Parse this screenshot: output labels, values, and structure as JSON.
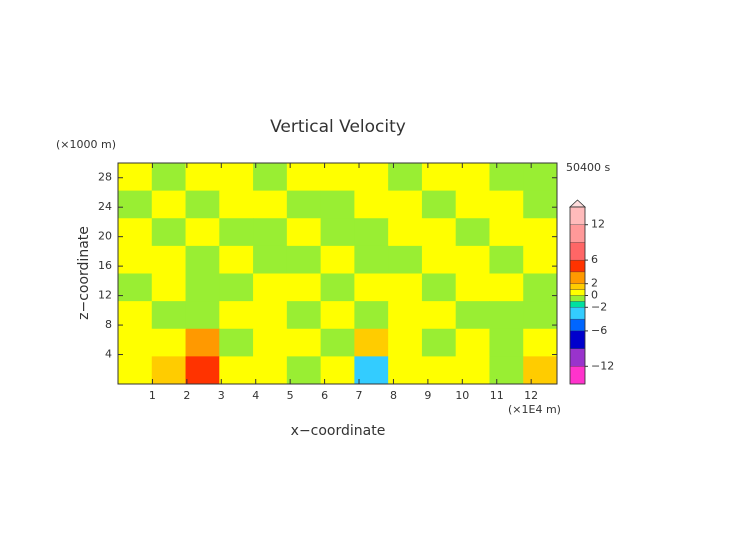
{
  "chart_data": {
    "type": "contour",
    "title": "Vertical Velocity",
    "time_label": "50400 s",
    "x_label": "x−coordinate",
    "y_label": "z−coordinate",
    "x_unit": "(×1E4 m)",
    "y_unit": "(×1000 m)",
    "xlim": [
      0,
      12.75
    ],
    "ylim": [
      0,
      30
    ],
    "xticks": [
      1,
      2,
      3,
      4,
      5,
      6,
      7,
      8,
      9,
      10,
      11,
      12
    ],
    "yticks": [
      4,
      8,
      12,
      16,
      20,
      24,
      28
    ],
    "field": [
      [
        0.5,
        -0.5,
        0.5,
        0.5,
        -0.5,
        0.5,
        0.5,
        0.5,
        -0.5,
        0.5,
        0.5,
        -0.5,
        -0.5
      ],
      [
        -0.5,
        0.5,
        -0.5,
        0.5,
        0.5,
        -0.5,
        -0.5,
        0.5,
        0.5,
        -0.5,
        0.5,
        0.5,
        -0.5
      ],
      [
        0.5,
        -0.5,
        0.5,
        -0.5,
        -0.5,
        0.5,
        -0.5,
        -0.5,
        0.5,
        0.5,
        -0.5,
        0.5,
        0.5
      ],
      [
        0.5,
        0.5,
        -0.5,
        0.5,
        -0.5,
        -0.5,
        0.5,
        -0.5,
        -0.5,
        0.5,
        0.5,
        -0.5,
        0.5
      ],
      [
        -0.5,
        0.5,
        -0.5,
        -0.5,
        0.5,
        0.5,
        -0.5,
        0.5,
        0.5,
        -0.5,
        0.5,
        0.5,
        -0.5
      ],
      [
        0.5,
        -0.5,
        -0.5,
        0.5,
        0.5,
        -0.5,
        0.5,
        -0.5,
        0.5,
        0.5,
        -0.5,
        -0.5,
        -0.5
      ],
      [
        0.5,
        0.5,
        3,
        -0.5,
        0.5,
        0.5,
        -0.5,
        1.5,
        0.5,
        -0.5,
        0.5,
        -0.5,
        0.5
      ],
      [
        0.5,
        1.5,
        5,
        0.5,
        0.5,
        -0.5,
        0.5,
        -3,
        0.5,
        0.5,
        0.5,
        -0.5,
        1.5
      ]
    ],
    "colorbar": {
      "clim": [
        -15,
        15
      ],
      "levels": [
        -15,
        -12,
        -9,
        -6,
        -4,
        -2,
        -1,
        0,
        1,
        2,
        4,
        6,
        9,
        12,
        15
      ],
      "colors": [
        "#ff33cc",
        "#9933cc",
        "#0000cc",
        "#0066ff",
        "#33ccff",
        "#00e0a0",
        "#99ee33",
        "#ffff00",
        "#ffcc00",
        "#ff9900",
        "#ff3300",
        "#ff6666",
        "#ff9999",
        "#ffbbbb"
      ],
      "ticks": [
        12,
        6,
        2,
        0,
        {
          "value": -2,
          "label": "−2"
        },
        {
          "value": -6,
          "label": "−6"
        },
        {
          "value": -12,
          "label": "−12"
        }
      ]
    }
  }
}
